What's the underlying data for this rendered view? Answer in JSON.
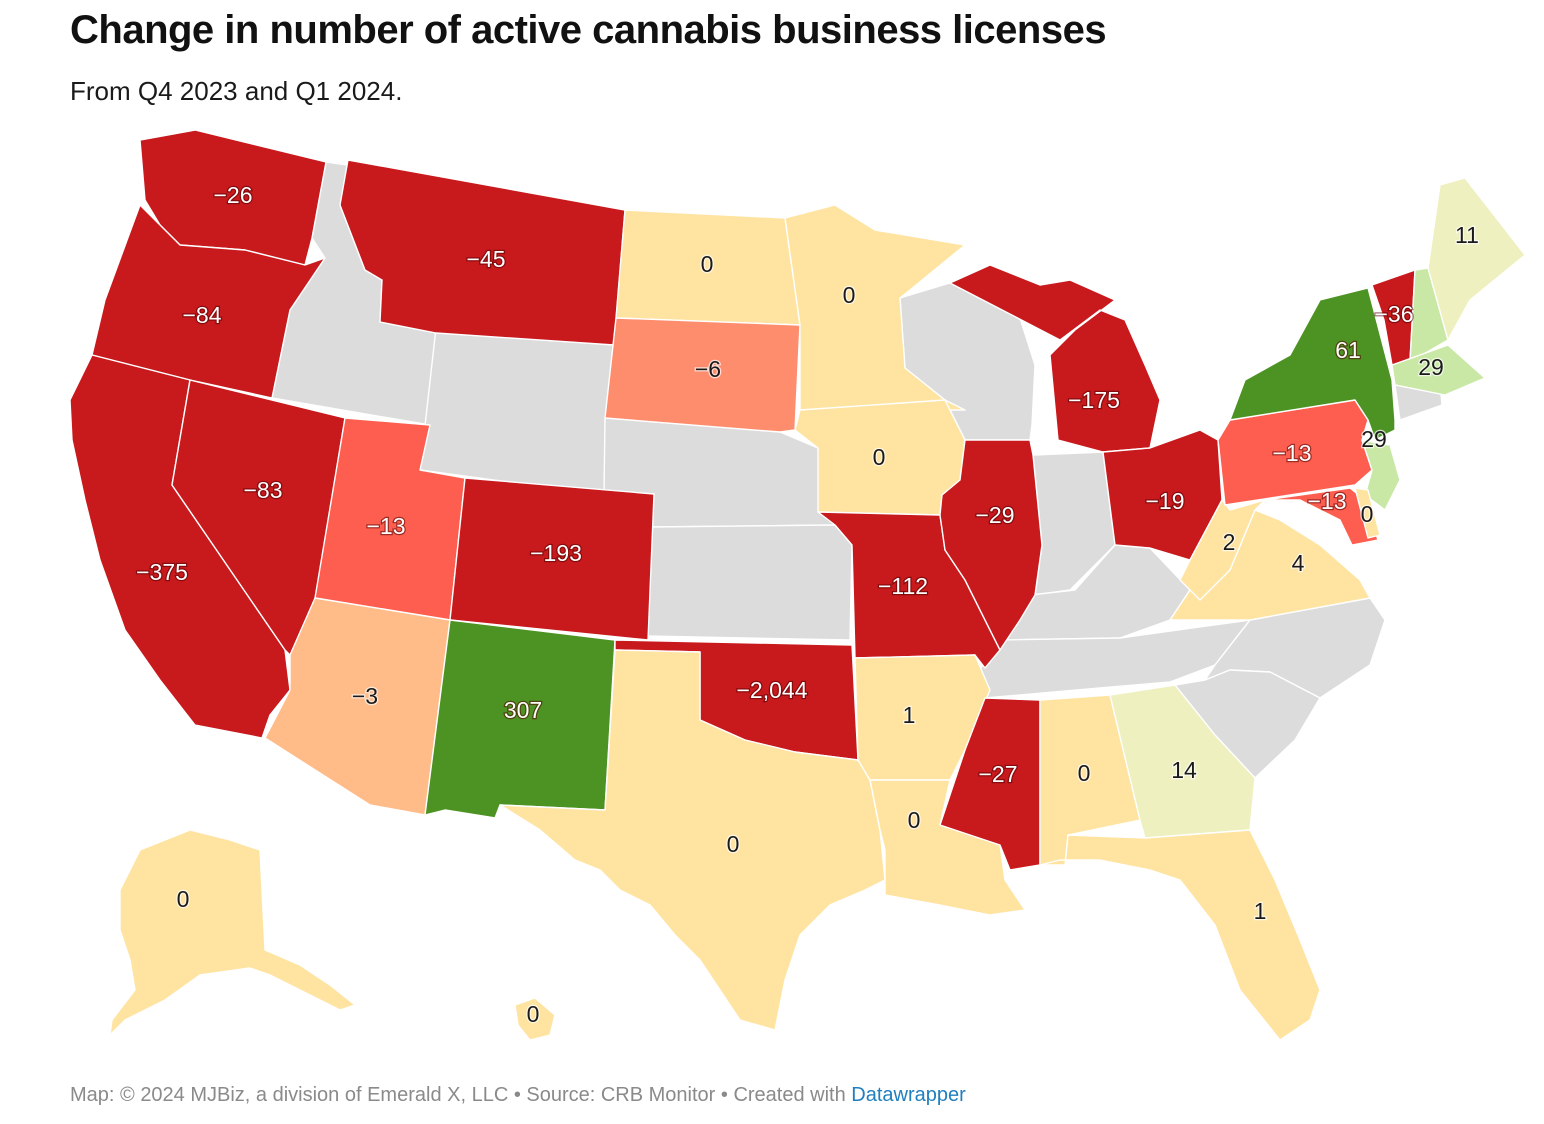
{
  "title": "Change in number of active cannabis business licenses",
  "subtitle": "From Q4 2023 and Q1 2024.",
  "footer": {
    "prefix": "Map: © 2024 MJBiz, a division of Emerald X, LLC • Source: CRB Monitor • Created with ",
    "link": "Datawrapper"
  },
  "colors": {
    "strong_negative": "#c8191d",
    "medium_negative": "#fe5e4f",
    "mild_negative": "#fe8d6e",
    "slight_negative": "#ffbb88",
    "zero_or_small": "#ffe3a1",
    "small_positive": "#eef0bf",
    "positive": "#c9e8a5",
    "strong_positive": "#4c9323",
    "no_data": "#dcdcdc"
  },
  "states": [
    {
      "code": "WA",
      "value": -26
    },
    {
      "code": "OR",
      "value": -84
    },
    {
      "code": "CA",
      "value": -375
    },
    {
      "code": "NV",
      "value": -83
    },
    {
      "code": "ID",
      "value": null
    },
    {
      "code": "MT",
      "value": -45
    },
    {
      "code": "WY",
      "value": null
    },
    {
      "code": "UT",
      "value": -13
    },
    {
      "code": "AZ",
      "value": -3
    },
    {
      "code": "CO",
      "value": -193
    },
    {
      "code": "NM",
      "value": 307
    },
    {
      "code": "ND",
      "value": 0
    },
    {
      "code": "SD",
      "value": -6
    },
    {
      "code": "NE",
      "value": null
    },
    {
      "code": "KS",
      "value": null
    },
    {
      "code": "OK",
      "value": -2044
    },
    {
      "code": "TX",
      "value": 0
    },
    {
      "code": "MN",
      "value": 0
    },
    {
      "code": "IA",
      "value": 0
    },
    {
      "code": "MO",
      "value": -112
    },
    {
      "code": "AR",
      "value": 1
    },
    {
      "code": "LA",
      "value": 0
    },
    {
      "code": "WI",
      "value": null
    },
    {
      "code": "IL",
      "value": -29
    },
    {
      "code": "MI",
      "value": -175
    },
    {
      "code": "IN",
      "value": null
    },
    {
      "code": "OH",
      "value": -19
    },
    {
      "code": "KY",
      "value": null
    },
    {
      "code": "TN",
      "value": null
    },
    {
      "code": "MS",
      "value": -27
    },
    {
      "code": "AL",
      "value": 0
    },
    {
      "code": "GA",
      "value": 14
    },
    {
      "code": "FL",
      "value": 1
    },
    {
      "code": "SC",
      "value": null
    },
    {
      "code": "NC",
      "value": null
    },
    {
      "code": "VA",
      "value": 4
    },
    {
      "code": "WV",
      "value": 2
    },
    {
      "code": "PA",
      "value": -13
    },
    {
      "code": "NY",
      "value": 61
    },
    {
      "code": "VT",
      "value": -36
    },
    {
      "code": "NH",
      "value": 29
    },
    {
      "code": "ME",
      "value": 11
    },
    {
      "code": "MA",
      "value": 29
    },
    {
      "code": "CT",
      "value": null
    },
    {
      "code": "NJ",
      "value": 29
    },
    {
      "code": "MD",
      "value": -13
    },
    {
      "code": "DE",
      "value": 0
    },
    {
      "code": "AK",
      "value": 0
    },
    {
      "code": "HI",
      "value": 0
    }
  ],
  "labels": [
    {
      "code": "WA",
      "text": "−26"
    },
    {
      "code": "OR",
      "text": "−84"
    },
    {
      "code": "CA",
      "text": "−375"
    },
    {
      "code": "NV",
      "text": "−83"
    },
    {
      "code": "MT",
      "text": "−45"
    },
    {
      "code": "UT",
      "text": "−13"
    },
    {
      "code": "AZ",
      "text": "−3"
    },
    {
      "code": "CO",
      "text": "−193"
    },
    {
      "code": "NM",
      "text": "307"
    },
    {
      "code": "ND",
      "text": "0"
    },
    {
      "code": "SD",
      "text": "−6"
    },
    {
      "code": "OK",
      "text": "−2,044"
    },
    {
      "code": "TX",
      "text": "0"
    },
    {
      "code": "MN",
      "text": "0"
    },
    {
      "code": "IA",
      "text": "0"
    },
    {
      "code": "MO",
      "text": "−112"
    },
    {
      "code": "AR",
      "text": "1"
    },
    {
      "code": "LA",
      "text": "0"
    },
    {
      "code": "IL",
      "text": "−29"
    },
    {
      "code": "MI",
      "text": "−175"
    },
    {
      "code": "OH",
      "text": "−19"
    },
    {
      "code": "MS",
      "text": "−27"
    },
    {
      "code": "AL",
      "text": "0"
    },
    {
      "code": "GA",
      "text": "14"
    },
    {
      "code": "FL",
      "text": "1"
    },
    {
      "code": "VA",
      "text": "4"
    },
    {
      "code": "WV",
      "text": "2"
    },
    {
      "code": "PA",
      "text": "−13"
    },
    {
      "code": "NY",
      "text": "61"
    },
    {
      "code": "VT",
      "text": "−36"
    },
    {
      "code": "ME",
      "text": "11"
    },
    {
      "code": "MA",
      "text": "29"
    },
    {
      "code": "NJ",
      "text": "29"
    },
    {
      "code": "MD",
      "text": "−13"
    },
    {
      "code": "DE",
      "text": "0"
    },
    {
      "code": "AK",
      "text": "0"
    },
    {
      "code": "HI",
      "text": "0"
    }
  ]
}
